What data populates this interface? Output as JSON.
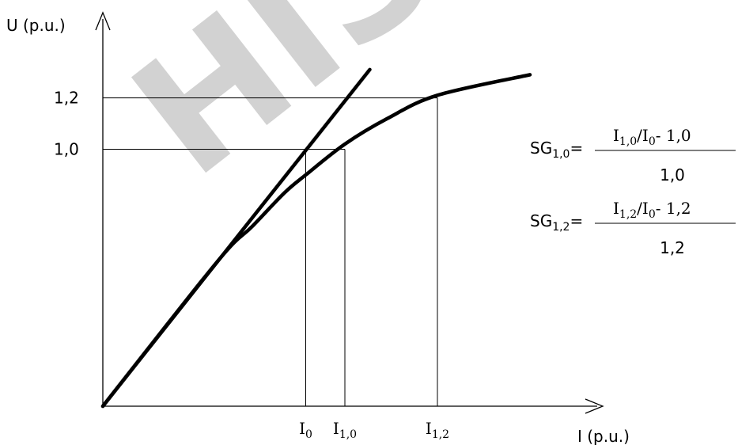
{
  "chart_data": {
    "type": "line",
    "title": "",
    "xlabel": "I (p.u.)",
    "ylabel": "U (p.u.)",
    "xlim": [
      0,
      1.4
    ],
    "ylim": [
      0,
      1.55
    ],
    "grid": false,
    "y_ticks": [
      {
        "value": 1.2,
        "label": "1,2"
      },
      {
        "value": 1.0,
        "label": "1,0"
      }
    ],
    "x_ticks": [
      {
        "value": 0.57,
        "main": "I",
        "sub": "0"
      },
      {
        "value": 0.68,
        "main": "I",
        "sub": "1,0"
      },
      {
        "value": 0.94,
        "main": "I",
        "sub": "1,2"
      }
    ],
    "series": [
      {
        "name": "",
        "kind": "linear",
        "color": "#000000",
        "x": [
          0,
          0.75
        ],
        "y": [
          0,
          1.31
        ]
      },
      {
        "name": "",
        "kind": "saturation",
        "color": "#000000",
        "x": [
          0,
          0.32,
          0.42,
          0.51,
          0.57,
          0.68,
          0.8,
          0.94,
          1.2
        ],
        "y": [
          0,
          0.56,
          0.7,
          0.83,
          0.9,
          1.02,
          1.12,
          1.21,
          1.29
        ]
      }
    ],
    "reference_lines": [
      {
        "y": 1.2,
        "x_to": 0.94
      },
      {
        "y": 1.0,
        "x_to": 0.68
      }
    ],
    "annotations": [
      {
        "lhs": "SG",
        "lhs_sub": "1,0",
        "eq": "=",
        "num_parts": [
          "I",
          "1,0",
          "/I",
          "0",
          "- 1,0"
        ],
        "den": "1,0"
      },
      {
        "lhs": "SG",
        "lhs_sub": "1,2",
        "eq": "=",
        "num_parts": [
          "I",
          "1,2",
          "/I",
          "0",
          "- 1,2"
        ],
        "den": "1,2"
      }
    ]
  },
  "watermark": {
    "text": "HIS",
    "color": "#c8c8c8"
  }
}
